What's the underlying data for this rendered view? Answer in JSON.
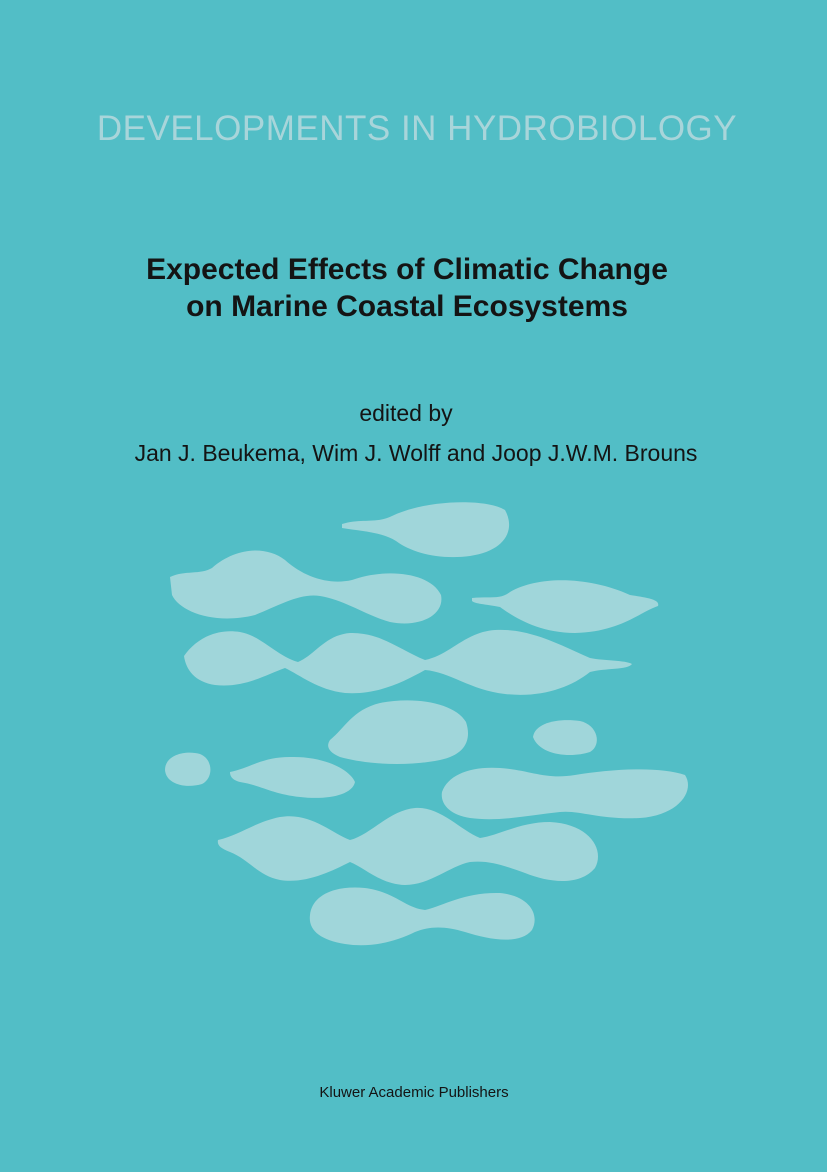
{
  "cover": {
    "series": "DEVELOPMENTS IN HYDROBIOLOGY",
    "title_lines": [
      "Expected Effects of Climatic Change",
      "on Marine Coastal Ecosystems"
    ],
    "edited_by": "edited by",
    "editors": "Jan J. Beukema, Wim J. Wolff and Joop J.W.M. Brouns",
    "publisher": "Kluwer Academic Publishers"
  }
}
